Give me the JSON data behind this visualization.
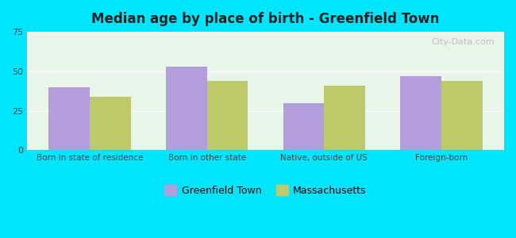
{
  "title": "Median age by place of birth - Greenfield Town",
  "categories": [
    "Born in state of residence",
    "Born in other state",
    "Native, outside of US",
    "Foreign-born"
  ],
  "greenfield_values": [
    40,
    53,
    30,
    47
  ],
  "massachusetts_values": [
    34,
    44,
    41,
    44
  ],
  "greenfield_color": "#b39ddb",
  "massachusetts_color": "#bec96a",
  "background_outer": "#00e5ff",
  "background_inner_top": "#e8f5e9",
  "background_inner_bottom": "#ffffff",
  "ylim": [
    0,
    75
  ],
  "yticks": [
    0,
    25,
    50,
    75
  ],
  "bar_width": 0.35,
  "legend_labels": [
    "Greenfield Town",
    "Massachusetts"
  ],
  "watermark": "City-Data.com"
}
